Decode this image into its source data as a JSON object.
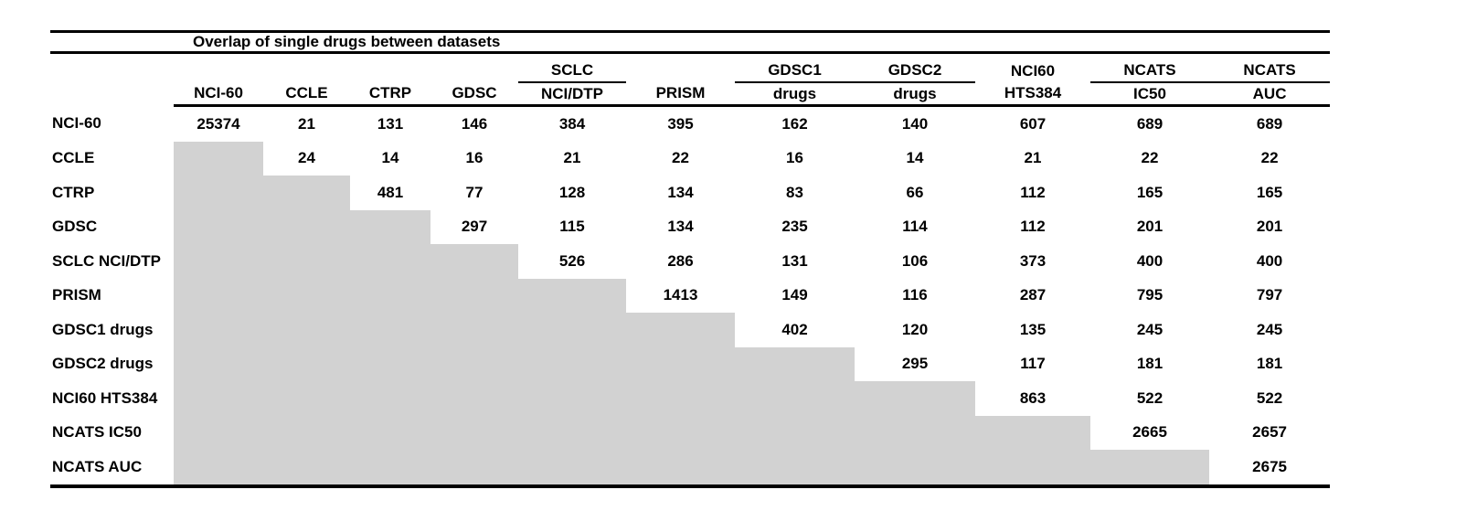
{
  "title": "Overlap of single drugs between datasets",
  "colors": {
    "shade": "#d2d2d2",
    "rule": "#000000",
    "text": "#000000"
  },
  "columns": [
    {
      "group": "",
      "sub": "NCI-60",
      "underline": false
    },
    {
      "group": "",
      "sub": "CCLE",
      "underline": false
    },
    {
      "group": "",
      "sub": "CTRP",
      "underline": false
    },
    {
      "group": "",
      "sub": "GDSC",
      "underline": false
    },
    {
      "group": "SCLC",
      "sub": "NCI/DTP",
      "underline": true
    },
    {
      "group": "",
      "sub": "PRISM",
      "underline": false
    },
    {
      "group": "GDSC1",
      "sub": "drugs",
      "underline": true
    },
    {
      "group": "GDSC2",
      "sub": "drugs",
      "underline": true
    },
    {
      "group": "NCI60",
      "sub": "HTS384",
      "underline": false
    },
    {
      "group": "NCATS",
      "sub": "IC50",
      "underline": true
    },
    {
      "group": "NCATS",
      "sub": "AUC",
      "underline": true
    }
  ],
  "rows": [
    {
      "label": "NCI-60",
      "values": [
        "25374",
        "21",
        "131",
        "146",
        "384",
        "395",
        "162",
        "140",
        "607",
        "689",
        "689"
      ]
    },
    {
      "label": "CCLE",
      "values": [
        null,
        "24",
        "14",
        "16",
        "21",
        "22",
        "16",
        "14",
        "21",
        "22",
        "22"
      ]
    },
    {
      "label": "CTRP",
      "values": [
        null,
        null,
        "481",
        "77",
        "128",
        "134",
        "83",
        "66",
        "112",
        "165",
        "165"
      ]
    },
    {
      "label": "GDSC",
      "values": [
        null,
        null,
        null,
        "297",
        "115",
        "134",
        "235",
        "114",
        "112",
        "201",
        "201"
      ]
    },
    {
      "label": "SCLC NCI/DTP",
      "values": [
        null,
        null,
        null,
        null,
        "526",
        "286",
        "131",
        "106",
        "373",
        "400",
        "400"
      ]
    },
    {
      "label": "PRISM",
      "values": [
        null,
        null,
        null,
        null,
        null,
        "1413",
        "149",
        "116",
        "287",
        "795",
        "797"
      ]
    },
    {
      "label": "GDSC1 drugs",
      "values": [
        null,
        null,
        null,
        null,
        null,
        null,
        "402",
        "120",
        "135",
        "245",
        "245"
      ]
    },
    {
      "label": "GDSC2 drugs",
      "values": [
        null,
        null,
        null,
        null,
        null,
        null,
        null,
        "295",
        "117",
        "181",
        "181"
      ]
    },
    {
      "label": "NCI60 HTS384",
      "values": [
        null,
        null,
        null,
        null,
        null,
        null,
        null,
        null,
        "863",
        "522",
        "522"
      ]
    },
    {
      "label": "NCATS IC50",
      "values": [
        null,
        null,
        null,
        null,
        null,
        null,
        null,
        null,
        null,
        "2665",
        "2657"
      ]
    },
    {
      "label": "NCATS AUC",
      "values": [
        null,
        null,
        null,
        null,
        null,
        null,
        null,
        null,
        null,
        null,
        "2675"
      ]
    }
  ]
}
